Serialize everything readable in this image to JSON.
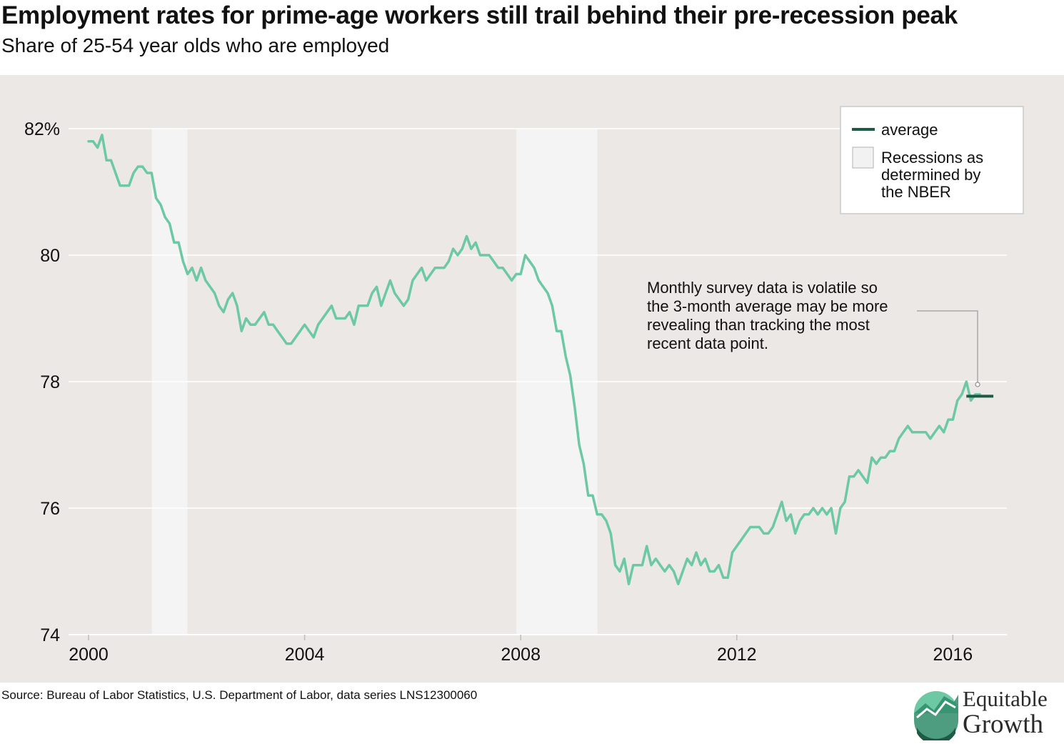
{
  "title": "Employment rates for prime-age workers still trail behind their pre-recession peak",
  "subtitle": "Share of 25-54 year olds who are employed",
  "source": "Source: Bureau of Labor Statistics, U.S. Department of Labor, data series LNS12300060",
  "logo": {
    "line1": "Equitable",
    "line2": "Growth"
  },
  "legend": {
    "average": "average",
    "recession_lines": [
      "Recessions as",
      "determined by",
      "the NBER"
    ]
  },
  "annotation": {
    "lines": [
      "Monthly survey data is volatile so",
      "the 3-month average may be more",
      "revealing than tracking the most",
      "recent data point."
    ]
  },
  "colors": {
    "series": "#6cc9a3",
    "average": "#1e5b45",
    "recession": "#f5f4f4",
    "plot_bg": "#ece8e6",
    "grid": "#ffffff"
  },
  "chart_data": {
    "type": "line",
    "title": "Employment rates for prime-age workers still trail behind their pre-recession peak",
    "subtitle": "Share of 25-54 year olds who are employed",
    "xlabel": "",
    "ylabel": "",
    "xlim": [
      2000,
      2017
    ],
    "ylim": [
      74,
      82
    ],
    "x_ticks": [
      2000,
      2004,
      2008,
      2012,
      2016
    ],
    "y_ticks": [
      74,
      76,
      78,
      80,
      82
    ],
    "y_tick_labels": [
      "74",
      "76",
      "78",
      "80",
      "82%"
    ],
    "grid": true,
    "legend_position": "top-right",
    "recessions": [
      [
        2001.17,
        2001.83
      ],
      [
        2007.92,
        2009.42
      ]
    ],
    "average": {
      "label": "average",
      "x_start": 2016.25,
      "x_end": 2016.75,
      "value": 77.77
    },
    "series": [
      {
        "start_year": 2000,
        "frequency": "monthly",
        "values": [
          81.8,
          81.8,
          81.7,
          81.9,
          81.5,
          81.5,
          81.3,
          81.1,
          81.1,
          81.1,
          81.3,
          81.4,
          81.4,
          81.3,
          81.3,
          80.9,
          80.8,
          80.6,
          80.5,
          80.2,
          80.2,
          79.9,
          79.7,
          79.8,
          79.6,
          79.8,
          79.6,
          79.5,
          79.4,
          79.2,
          79.1,
          79.3,
          79.4,
          79.2,
          78.8,
          79.0,
          78.9,
          78.9,
          79.0,
          79.1,
          78.9,
          78.9,
          78.8,
          78.7,
          78.6,
          78.6,
          78.7,
          78.8,
          78.9,
          78.8,
          78.7,
          78.9,
          79.0,
          79.1,
          79.2,
          79.0,
          79.0,
          79.0,
          79.1,
          78.9,
          79.2,
          79.2,
          79.2,
          79.4,
          79.5,
          79.2,
          79.4,
          79.6,
          79.4,
          79.3,
          79.2,
          79.3,
          79.6,
          79.7,
          79.8,
          79.6,
          79.7,
          79.8,
          79.8,
          79.8,
          79.9,
          80.1,
          80.0,
          80.1,
          80.3,
          80.1,
          80.2,
          80.0,
          80.0,
          80.0,
          79.9,
          79.8,
          79.8,
          79.7,
          79.6,
          79.7,
          79.7,
          80.0,
          79.9,
          79.8,
          79.6,
          79.5,
          79.4,
          79.2,
          78.8,
          78.8,
          78.4,
          78.1,
          77.6,
          77.0,
          76.7,
          76.2,
          76.2,
          75.9,
          75.9,
          75.8,
          75.6,
          75.1,
          75.0,
          75.2,
          74.8,
          75.1,
          75.1,
          75.1,
          75.4,
          75.1,
          75.2,
          75.1,
          75.0,
          75.1,
          75.0,
          74.8,
          75.0,
          75.2,
          75.1,
          75.3,
          75.1,
          75.2,
          75.0,
          75.0,
          75.1,
          74.9,
          74.9,
          75.3,
          75.4,
          75.5,
          75.6,
          75.7,
          75.7,
          75.7,
          75.6,
          75.6,
          75.7,
          75.9,
          76.1,
          75.8,
          75.9,
          75.6,
          75.8,
          75.9,
          75.9,
          76.0,
          75.9,
          76.0,
          75.9,
          76.0,
          75.6,
          76.0,
          76.1,
          76.5,
          76.5,
          76.6,
          76.5,
          76.4,
          76.8,
          76.7,
          76.8,
          76.8,
          76.9,
          76.9,
          77.1,
          77.2,
          77.3,
          77.2,
          77.2,
          77.2,
          77.2,
          77.1,
          77.2,
          77.3,
          77.2,
          77.4,
          77.4,
          77.7,
          77.8,
          78.0,
          77.7,
          77.8,
          77.8
        ]
      }
    ]
  }
}
